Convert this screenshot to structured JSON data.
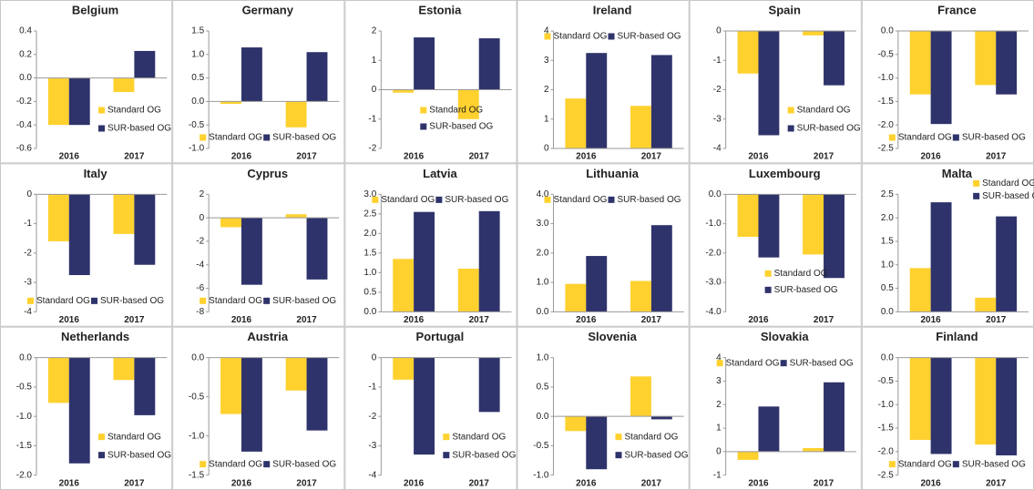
{
  "chart_data": [
    {
      "type": "bar",
      "title": "Belgium",
      "categories": [
        "2016",
        "2017"
      ],
      "series": [
        {
          "name": "Standard OG",
          "color": "#ffd12e",
          "values": [
            -0.4,
            -0.12
          ]
        },
        {
          "name": "SUR-based OG",
          "color": "#2f336b",
          "values": [
            -0.4,
            0.23
          ]
        }
      ],
      "ylim": [
        -0.6,
        0.4
      ],
      "yticks": [
        -0.6,
        -0.4,
        -0.2,
        {
          "value": 0,
          "label": "0.0"
        },
        0.2,
        0.4
      ],
      "grid": false,
      "legend": "lower right"
    },
    {
      "type": "bar",
      "title": "Germany",
      "categories": [
        "2016",
        "2017"
      ],
      "series": [
        {
          "name": "Standard OG",
          "color": "#ffd12e",
          "values": [
            -0.05,
            -0.55
          ]
        },
        {
          "name": "SUR-based OG",
          "color": "#2f336b",
          "values": [
            1.15,
            1.05
          ]
        }
      ],
      "ylim": [
        -1,
        1.5
      ],
      "yticks": [
        {
          "value": -1,
          "label": "-1.0"
        },
        -0.5,
        {
          "value": 0,
          "label": "0.0"
        },
        0.5,
        {
          "value": 1,
          "label": "1.0"
        },
        1.5
      ],
      "grid": false,
      "legend": "bottom"
    },
    {
      "type": "bar",
      "title": "Estonia",
      "categories": [
        "2016",
        "2017"
      ],
      "series": [
        {
          "name": "Standard OG",
          "color": "#ffd12e",
          "values": [
            -0.1,
            -1.0
          ]
        },
        {
          "name": "SUR-based OG",
          "color": "#2f336b",
          "values": [
            1.78,
            1.75
          ]
        }
      ],
      "ylim": [
        -2,
        2
      ],
      "yticks": [
        -2,
        -1,
        0,
        1,
        2
      ],
      "grid": false,
      "legend": "lower center"
    },
    {
      "type": "bar",
      "title": "Ireland",
      "categories": [
        "2016",
        "2017"
      ],
      "series": [
        {
          "name": "Standard OG",
          "color": "#ffd12e",
          "values": [
            1.7,
            1.45
          ]
        },
        {
          "name": "SUR-based OG",
          "color": "#2f336b",
          "values": [
            3.25,
            3.18
          ]
        }
      ],
      "ylim": [
        0,
        4
      ],
      "yticks": [
        0,
        1,
        2,
        3,
        4
      ],
      "grid": false,
      "legend": "top"
    },
    {
      "type": "bar",
      "title": "Spain",
      "categories": [
        "2016",
        "2017"
      ],
      "series": [
        {
          "name": "Standard OG",
          "color": "#ffd12e",
          "values": [
            -1.45,
            -0.15
          ]
        },
        {
          "name": "SUR-based OG",
          "color": "#2f336b",
          "values": [
            -3.55,
            -1.85
          ]
        }
      ],
      "ylim": [
        -4,
        0
      ],
      "yticks": [
        -4,
        -3,
        -2,
        -1,
        0
      ],
      "grid": false,
      "legend": "lower right"
    },
    {
      "type": "bar",
      "title": "France",
      "categories": [
        "2016",
        "2017"
      ],
      "series": [
        {
          "name": "Standard OG",
          "color": "#ffd12e",
          "values": [
            -1.35,
            -1.15
          ]
        },
        {
          "name": "SUR-based OG",
          "color": "#2f336b",
          "values": [
            -1.98,
            -1.35
          ]
        }
      ],
      "ylim": [
        -2.5,
        0
      ],
      "yticks": [
        -2.5,
        {
          "value": -2,
          "label": "-2.0"
        },
        -1.5,
        {
          "value": -1,
          "label": "-1.0"
        },
        -0.5,
        {
          "value": 0,
          "label": "0.0"
        }
      ],
      "grid": false,
      "legend": "bottom"
    },
    {
      "type": "bar",
      "title": "Italy",
      "categories": [
        "2016",
        "2017"
      ],
      "series": [
        {
          "name": "Standard OG",
          "color": "#ffd12e",
          "values": [
            -1.6,
            -1.35
          ]
        },
        {
          "name": "SUR-based OG",
          "color": "#2f336b",
          "values": [
            -2.75,
            -2.4
          ]
        }
      ],
      "ylim": [
        -4,
        0
      ],
      "yticks": [
        -4,
        -3,
        -2,
        -1,
        0
      ],
      "grid": false,
      "legend": "bottom"
    },
    {
      "type": "bar",
      "title": "Cyprus",
      "categories": [
        "2016",
        "2017"
      ],
      "series": [
        {
          "name": "Standard OG",
          "color": "#ffd12e",
          "values": [
            -0.8,
            0.3
          ]
        },
        {
          "name": "SUR-based OG",
          "color": "#2f336b",
          "values": [
            -5.7,
            -5.25
          ]
        }
      ],
      "ylim": [
        -8,
        2
      ],
      "yticks": [
        -8,
        -6,
        -4,
        -2,
        0,
        2
      ],
      "grid": false,
      "legend": "bottom"
    },
    {
      "type": "bar",
      "title": "Latvia",
      "categories": [
        "2016",
        "2017"
      ],
      "series": [
        {
          "name": "Standard OG",
          "color": "#ffd12e",
          "values": [
            1.35,
            1.1
          ]
        },
        {
          "name": "SUR-based OG",
          "color": "#2f336b",
          "values": [
            2.55,
            2.57
          ]
        }
      ],
      "ylim": [
        0,
        3
      ],
      "yticks": [
        {
          "value": 0,
          "label": "0.0"
        },
        0.5,
        {
          "value": 1,
          "label": "1.0"
        },
        1.5,
        {
          "value": 2,
          "label": "2.0"
        },
        2.5,
        {
          "value": 3,
          "label": "3.0"
        }
      ],
      "grid": false,
      "legend": "top"
    },
    {
      "type": "bar",
      "title": "Lithuania",
      "categories": [
        "2016",
        "2017"
      ],
      "series": [
        {
          "name": "Standard OG",
          "color": "#ffd12e",
          "values": [
            0.95,
            1.05
          ]
        },
        {
          "name": "SUR-based OG",
          "color": "#2f336b",
          "values": [
            1.9,
            2.95
          ]
        }
      ],
      "ylim": [
        0,
        4
      ],
      "yticks": [
        {
          "value": 0,
          "label": "0.0"
        },
        {
          "value": 1,
          "label": "1.0"
        },
        {
          "value": 2,
          "label": "2.0"
        },
        {
          "value": 3,
          "label": "3.0"
        },
        {
          "value": 4,
          "label": "4.0"
        }
      ],
      "grid": false,
      "legend": "top"
    },
    {
      "type": "bar",
      "title": "Luxembourg",
      "categories": [
        "2016",
        "2017"
      ],
      "series": [
        {
          "name": "Standard OG",
          "color": "#ffd12e",
          "values": [
            -1.45,
            -2.05
          ]
        },
        {
          "name": "SUR-based OG",
          "color": "#2f336b",
          "values": [
            -2.15,
            -2.85
          ]
        }
      ],
      "ylim": [
        -4,
        0
      ],
      "yticks": [
        {
          "value": -4,
          "label": "-4.0"
        },
        {
          "value": -3,
          "label": "-3.0"
        },
        {
          "value": -2,
          "label": "-2.0"
        },
        {
          "value": -1,
          "label": "-1.0"
        },
        {
          "value": 0,
          "label": "0.0"
        }
      ],
      "grid": false,
      "legend": "lower center"
    },
    {
      "type": "bar",
      "title": "Malta",
      "categories": [
        "2016",
        "2017"
      ],
      "series": [
        {
          "name": "Standard OG",
          "color": "#ffd12e",
          "values": [
            0.93,
            0.3
          ]
        },
        {
          "name": "SUR-based OG",
          "color": "#2f336b",
          "values": [
            2.33,
            2.03
          ]
        }
      ],
      "ylim": [
        0,
        2.5
      ],
      "yticks": [
        {
          "value": 0,
          "label": "0.0"
        },
        0.5,
        {
          "value": 1,
          "label": "1.0"
        },
        1.5,
        {
          "value": 2,
          "label": "2.0"
        },
        2.5
      ],
      "grid": false,
      "legend": "upper right"
    },
    {
      "type": "bar",
      "title": "Netherlands",
      "categories": [
        "2016",
        "2017"
      ],
      "series": [
        {
          "name": "Standard OG",
          "color": "#ffd12e",
          "values": [
            -0.77,
            -0.38
          ]
        },
        {
          "name": "SUR-based OG",
          "color": "#2f336b",
          "values": [
            -1.8,
            -0.98
          ]
        }
      ],
      "ylim": [
        -2,
        0
      ],
      "yticks": [
        {
          "value": -2,
          "label": "-2.0"
        },
        -1.5,
        {
          "value": -1,
          "label": "-1.0"
        },
        -0.5,
        {
          "value": 0,
          "label": "0.0"
        }
      ],
      "grid": false,
      "legend": "lower right"
    },
    {
      "type": "bar",
      "title": "Austria",
      "categories": [
        "2016",
        "2017"
      ],
      "series": [
        {
          "name": "Standard OG",
          "color": "#ffd12e",
          "values": [
            -0.72,
            -0.42
          ]
        },
        {
          "name": "SUR-based OG",
          "color": "#2f336b",
          "values": [
            -1.2,
            -0.93
          ]
        }
      ],
      "ylim": [
        -1.5,
        0
      ],
      "yticks": [
        -1.5,
        {
          "value": -1,
          "label": "-1.0"
        },
        -0.5,
        {
          "value": 0,
          "label": "0.0"
        }
      ],
      "grid": false,
      "legend": "bottom"
    },
    {
      "type": "bar",
      "title": "Portugal",
      "categories": [
        "2016",
        "2017"
      ],
      "series": [
        {
          "name": "Standard OG",
          "color": "#ffd12e",
          "values": [
            -0.75,
            0
          ]
        },
        {
          "name": "SUR-based OG",
          "color": "#2f336b",
          "values": [
            -3.3,
            -1.85
          ]
        }
      ],
      "ylim": [
        -4,
        0
      ],
      "yticks": [
        -4,
        -3,
        -2,
        -1,
        0
      ],
      "grid": false,
      "legend": "lower right"
    },
    {
      "type": "bar",
      "title": "Slovenia",
      "categories": [
        "2016",
        "2017"
      ],
      "series": [
        {
          "name": "Standard OG",
          "color": "#ffd12e",
          "values": [
            -0.25,
            0.68
          ]
        },
        {
          "name": "SUR-based OG",
          "color": "#2f336b",
          "values": [
            -0.9,
            -0.05
          ]
        }
      ],
      "ylim": [
        -1,
        1
      ],
      "yticks": [
        {
          "value": -1,
          "label": "-1.0"
        },
        -0.5,
        {
          "value": 0,
          "label": "0.0"
        },
        0.5,
        {
          "value": 1,
          "label": "1.0"
        }
      ],
      "grid": false,
      "legend": "lower right"
    },
    {
      "type": "bar",
      "title": "Slovakia",
      "categories": [
        "2016",
        "2017"
      ],
      "series": [
        {
          "name": "Standard OG",
          "color": "#ffd12e",
          "values": [
            -0.35,
            0.15
          ]
        },
        {
          "name": "SUR-based OG",
          "color": "#2f336b",
          "values": [
            1.92,
            2.95
          ]
        }
      ],
      "ylim": [
        -1,
        4
      ],
      "yticks": [
        -1,
        0,
        1,
        2,
        3,
        4
      ],
      "grid": false,
      "legend": "top"
    },
    {
      "type": "bar",
      "title": "Finland",
      "categories": [
        "2016",
        "2017"
      ],
      "series": [
        {
          "name": "Standard OG",
          "color": "#ffd12e",
          "values": [
            -1.75,
            -1.85
          ]
        },
        {
          "name": "SUR-based OG",
          "color": "#2f336b",
          "values": [
            -2.05,
            -2.08
          ]
        }
      ],
      "ylim": [
        -2.5,
        0
      ],
      "yticks": [
        -2.5,
        {
          "value": -2,
          "label": "-2.0"
        },
        -1.5,
        {
          "value": -1,
          "label": "-1.0"
        },
        -0.5,
        {
          "value": 0,
          "label": "0.0"
        }
      ],
      "grid": false,
      "legend": "bottom"
    }
  ]
}
